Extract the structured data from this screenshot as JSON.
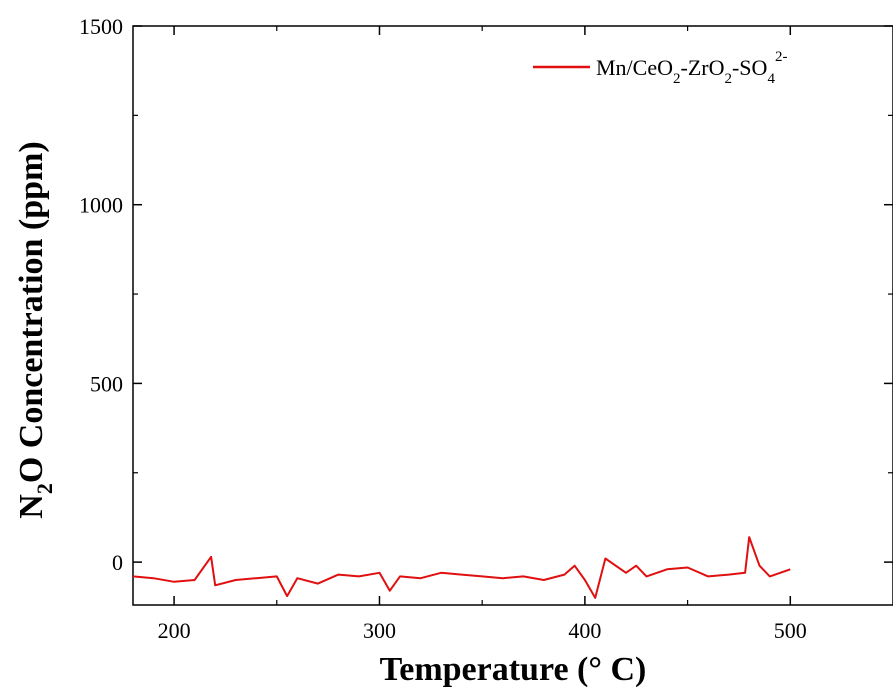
{
  "chart_data": {
    "type": "line",
    "xlabel": "Temperature (° C)",
    "ylabel_parts": [
      "N",
      "2",
      "O Concentration (ppm)"
    ],
    "xlim": [
      180,
      550
    ],
    "ylim": [
      -120,
      1500
    ],
    "xticks": [
      200,
      300,
      400,
      500
    ],
    "yticks": [
      0,
      500,
      1000,
      1500
    ],
    "xtick_labels": [
      "200",
      "300",
      "400",
      "500"
    ],
    "ytick_labels": [
      "0",
      "500",
      "1000",
      "1500"
    ],
    "legend": {
      "position": "top-right",
      "parts": [
        {
          "t": "Mn/CeO",
          "s": "n"
        },
        {
          "t": "2",
          "s": "sub"
        },
        {
          "t": "-ZrO",
          "s": "n"
        },
        {
          "t": "2",
          "s": "sub"
        },
        {
          "t": "-SO",
          "s": "n"
        },
        {
          "t": "4",
          "s": "sub"
        },
        {
          "t": "2-",
          "s": "sup"
        }
      ]
    },
    "series": [
      {
        "color": "#e01010",
        "x": [
          180,
          190,
          200,
          210,
          218,
          220,
          230,
          240,
          250,
          255,
          260,
          270,
          280,
          290,
          300,
          305,
          310,
          320,
          330,
          340,
          350,
          360,
          370,
          380,
          390,
          395,
          400,
          405,
          410,
          420,
          425,
          430,
          440,
          450,
          460,
          470,
          478,
          480,
          485,
          490,
          500
        ],
        "y": [
          -40,
          -45,
          -55,
          -50,
          15,
          -65,
          -50,
          -45,
          -40,
          -95,
          -45,
          -60,
          -35,
          -40,
          -30,
          -80,
          -40,
          -45,
          -30,
          -35,
          -40,
          -45,
          -40,
          -50,
          -35,
          -10,
          -50,
          -100,
          10,
          -30,
          -10,
          -40,
          -20,
          -15,
          -40,
          -35,
          -30,
          70,
          -10,
          -40,
          -20
        ]
      }
    ]
  }
}
